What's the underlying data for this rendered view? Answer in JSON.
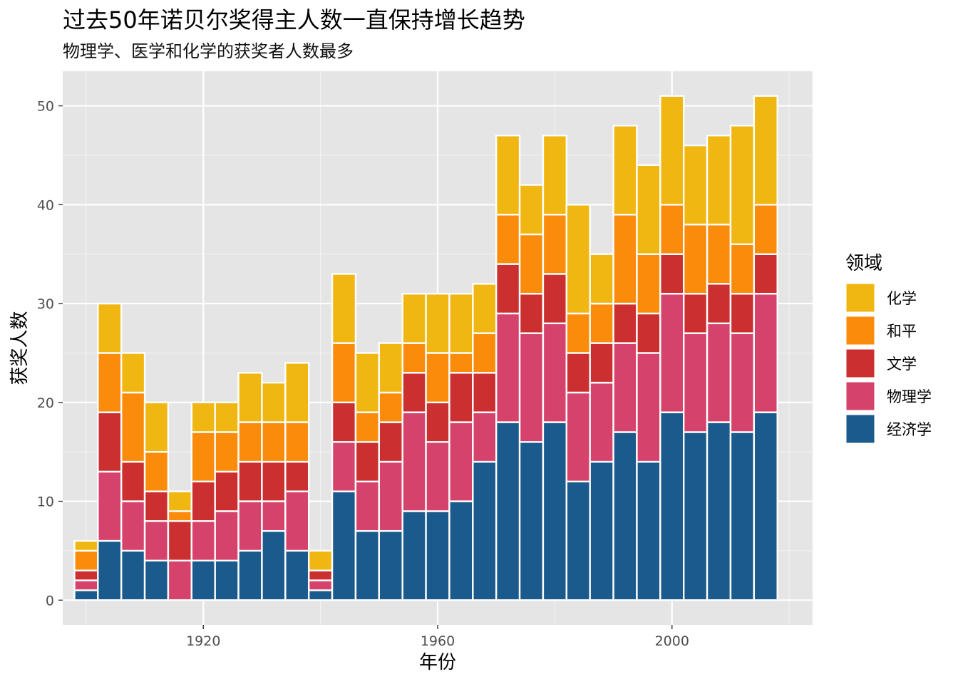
{
  "chart_data": {
    "type": "bar",
    "stacked": true,
    "title": "过去50年诺贝尔奖得主人数一直保持增长趋势",
    "subtitle": "物理学、医学和化学的获奖者人数最多",
    "xlabel": "年份",
    "ylabel": "获奖人数",
    "legend_title": "领域",
    "legend_position": "right",
    "grid": true,
    "xlim": [
      1896,
      2024
    ],
    "ylim": [
      -2.5,
      53.5
    ],
    "x_ticks": [
      1920,
      1960,
      2000
    ],
    "y_ticks": [
      0,
      10,
      20,
      30,
      40,
      50
    ],
    "x": [
      1900,
      1904,
      1908,
      1912,
      1916,
      1920,
      1924,
      1928,
      1932,
      1936,
      1940,
      1944,
      1948,
      1952,
      1956,
      1960,
      1964,
      1968,
      1972,
      1976,
      1980,
      1984,
      1988,
      1992,
      1996,
      2000,
      2004,
      2008,
      2012,
      2016
    ],
    "series": [
      {
        "name": "经济学",
        "color": "#1a5a8c",
        "values": [
          1,
          6,
          5,
          4,
          0,
          4,
          4,
          5,
          7,
          5,
          1,
          11,
          7,
          7,
          9,
          9,
          10,
          14,
          18,
          16,
          18,
          12,
          14,
          17,
          14,
          19,
          17,
          18,
          17,
          19
        ]
      },
      {
        "name": "物理学",
        "color": "#d5426b",
        "values": [
          1,
          7,
          5,
          4,
          4,
          4,
          5,
          5,
          3,
          6,
          1,
          5,
          5,
          7,
          10,
          7,
          8,
          5,
          11,
          11,
          10,
          9,
          8,
          9,
          11,
          12,
          10,
          10,
          10,
          12
        ]
      },
      {
        "name": "文学",
        "color": "#cc2f2f",
        "values": [
          1,
          6,
          4,
          3,
          4,
          4,
          4,
          4,
          4,
          3,
          1,
          4,
          4,
          4,
          4,
          4,
          5,
          4,
          5,
          4,
          5,
          4,
          4,
          4,
          4,
          4,
          4,
          4,
          4,
          4
        ]
      },
      {
        "name": "和平",
        "color": "#fb8b0b",
        "values": [
          2,
          6,
          7,
          4,
          1,
          5,
          4,
          4,
          4,
          4,
          0,
          6,
          3,
          3,
          3,
          5,
          2,
          4,
          5,
          6,
          6,
          4,
          4,
          9,
          6,
          5,
          7,
          6,
          5,
          5
        ]
      },
      {
        "name": "化学",
        "color": "#f0b712",
        "values": [
          1,
          5,
          4,
          5,
          2,
          3,
          3,
          5,
          4,
          6,
          2,
          7,
          6,
          5,
          5,
          6,
          6,
          5,
          8,
          5,
          8,
          11,
          5,
          9,
          9,
          11,
          8,
          9,
          12,
          11
        ]
      }
    ]
  }
}
